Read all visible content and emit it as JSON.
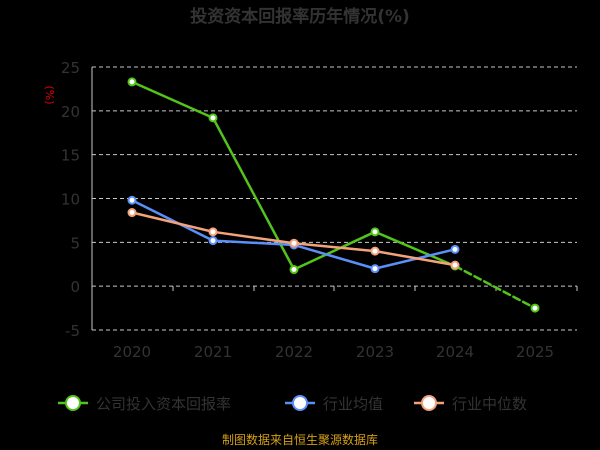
{
  "chart_data": {
    "type": "line",
    "title": "投资资本回报率历年情况(%)",
    "ylabel": "(%)",
    "x": [
      "2020",
      "2021",
      "2022",
      "2023",
      "2024",
      "2025"
    ],
    "ylim": [
      -5,
      25
    ],
    "yticks": [
      25,
      20,
      15,
      10,
      5,
      0,
      -5
    ],
    "grid": true,
    "legend_position": "bottom",
    "series": [
      {
        "name": "公司投入资本回报率",
        "color": "#52c41a",
        "values": [
          23.3,
          19.2,
          1.9,
          6.2,
          2.3,
          -2.5
        ],
        "dashed_from_index": 4
      },
      {
        "name": "行业均值",
        "color": "#5b8ff9",
        "values": [
          9.8,
          5.2,
          4.7,
          2.0,
          4.2,
          null
        ]
      },
      {
        "name": "行业中位数",
        "color": "#f4a27a",
        "values": [
          8.4,
          6.2,
          4.9,
          4.0,
          2.4,
          null
        ]
      }
    ],
    "source": "制图数据来自恒生聚源数据库"
  }
}
